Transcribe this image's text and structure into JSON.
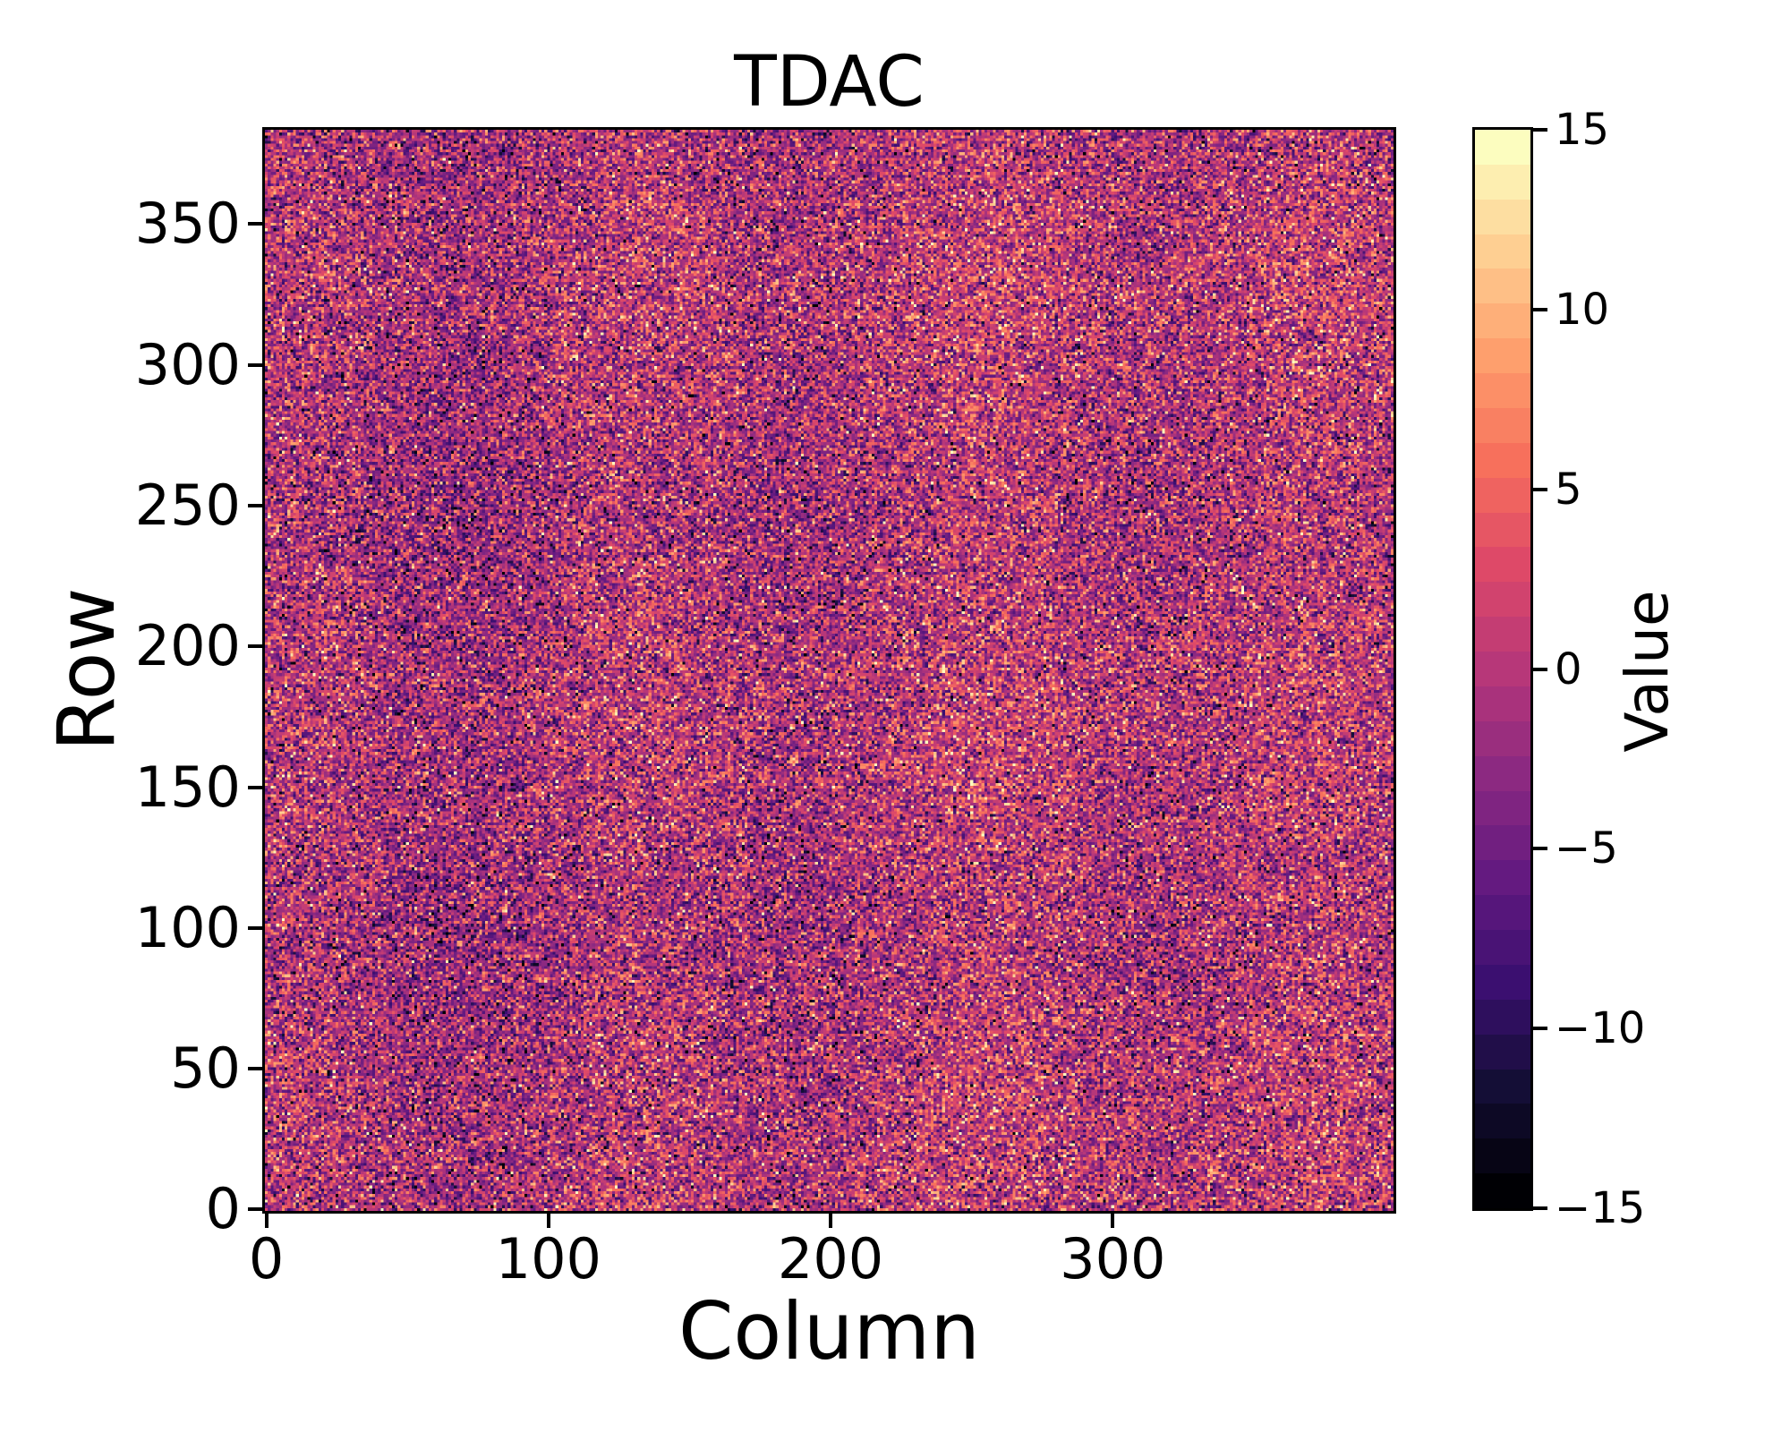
{
  "figure": {
    "title": "TDAC",
    "background_color": "#ffffff"
  },
  "chart_data": {
    "type": "heatmap",
    "title": "TDAC",
    "xlabel": "Column",
    "ylabel": "Row",
    "n_cols": 400,
    "n_rows": 384,
    "x_range": [
      -0.5,
      399.5
    ],
    "y_range": [
      -0.5,
      383.5
    ],
    "x_ticks": [
      0,
      100,
      200,
      300
    ],
    "x_tick_labels": [
      "0",
      "100",
      "200",
      "300"
    ],
    "y_ticks": [
      0,
      50,
      100,
      150,
      200,
      250,
      300,
      350
    ],
    "y_tick_labels": [
      "0",
      "50",
      "100",
      "150",
      "200",
      "250",
      "300",
      "350"
    ],
    "grid": false,
    "legend": "none",
    "colorbar": {
      "label": "Value",
      "vmin": -15,
      "vmax": 15,
      "ticks": [
        15,
        10,
        5,
        0,
        -5,
        -10,
        -15
      ],
      "tick_labels": [
        "15",
        "10",
        "5",
        "0",
        "−5",
        "−10",
        "−15"
      ],
      "n_levels": 31,
      "position": "right"
    },
    "colormap": {
      "name": "magma",
      "stops": [
        "#000004",
        "#140e36",
        "#3b0f70",
        "#641a80",
        "#8c2981",
        "#b73779",
        "#de4968",
        "#f7705c",
        "#fe9f6d",
        "#fecf92",
        "#fcfdbf"
      ]
    },
    "data_model": {
      "description": "integer pixel trim-DAC map, random noise",
      "distribution": "gaussian",
      "mean": -0.5,
      "std": 5.5,
      "round_to_int": true,
      "clip": [
        -15,
        15
      ],
      "seed": 20487
    }
  }
}
